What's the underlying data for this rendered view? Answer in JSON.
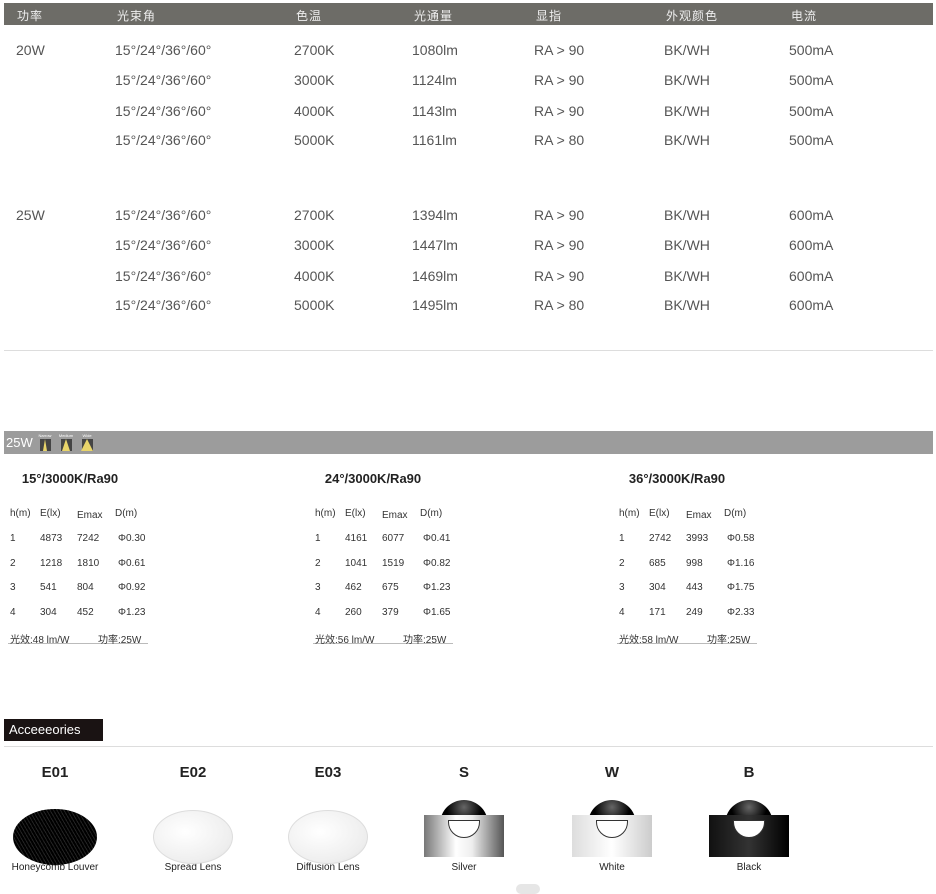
{
  "spec_table": {
    "headers": [
      "功率",
      "光束角",
      "色温",
      "光通量",
      "显指",
      "外观颜色",
      "电流"
    ],
    "groups": [
      {
        "power": "20W",
        "rows": [
          [
            "15°/24°/36°/60°",
            "2700K",
            "1080lm",
            "RA > 90",
            "BK/WH",
            "500mA"
          ],
          [
            "15°/24°/36°/60°",
            "3000K",
            "1124lm",
            "RA > 90",
            "BK/WH",
            "500mA"
          ],
          [
            "15°/24°/36°/60°",
            "4000K",
            "1143lm",
            "RA > 90",
            "BK/WH",
            "500mA"
          ],
          [
            "15°/24°/36°/60°",
            "5000K",
            "1161lm",
            "RA > 80",
            "BK/WH",
            "500mA"
          ]
        ]
      },
      {
        "power": "25W",
        "rows": [
          [
            "15°/24°/36°/60°",
            "2700K",
            "1394lm",
            "RA > 90",
            "BK/WH",
            "600mA"
          ],
          [
            "15°/24°/36°/60°",
            "3000K",
            "1447lm",
            "RA > 90",
            "BK/WH",
            "600mA"
          ],
          [
            "15°/24°/36°/60°",
            "4000K",
            "1469lm",
            "RA > 90",
            "BK/WH",
            "600mA"
          ],
          [
            "15°/24°/36°/60°",
            "5000K",
            "1495lm",
            "RA > 80",
            "BK/WH",
            "600mA"
          ]
        ]
      }
    ]
  },
  "photometric": {
    "power_label": "25W",
    "beam_icons": [
      "Narrow",
      "Medium",
      "Wide"
    ],
    "headers": [
      "h(m)",
      "E(lx)",
      "Emax",
      "D(m)"
    ],
    "tables": [
      {
        "title": "15°/3000K/Ra90",
        "rows": [
          [
            "1",
            "4873",
            "7242",
            "Φ0.30"
          ],
          [
            "2",
            "1218",
            "1810",
            "Φ0.61"
          ],
          [
            "3",
            "541",
            "804",
            "Φ0.92"
          ],
          [
            "4",
            "304",
            "452",
            "Φ1.23"
          ]
        ],
        "efficacy": "光效:48 lm/W",
        "power": "功率:25W"
      },
      {
        "title": "24°/3000K/Ra90",
        "rows": [
          [
            "1",
            "4161",
            "6077",
            "Φ0.41"
          ],
          [
            "2",
            "1041",
            "1519",
            "Φ0.82"
          ],
          [
            "3",
            "462",
            "675",
            "Φ1.23"
          ],
          [
            "4",
            "260",
            "379",
            "Φ1.65"
          ]
        ],
        "efficacy": "光效:56 lm/W",
        "power": "功率:25W"
      },
      {
        "title": "36°/3000K/Ra90",
        "rows": [
          [
            "1",
            "2742",
            "3993",
            "Φ0.58"
          ],
          [
            "2",
            "685",
            "998",
            "Φ1.16"
          ],
          [
            "3",
            "304",
            "443",
            "Φ1.75"
          ],
          [
            "4",
            "171",
            "249",
            "Φ2.33"
          ]
        ],
        "efficacy": "光效:58 lm/W",
        "power": "功率:25W"
      }
    ]
  },
  "accessories": {
    "title": "Acceeeories",
    "items": [
      {
        "code": "E01",
        "name": "Honeycomb Louver",
        "icon": "honeycomb-louver"
      },
      {
        "code": "E02",
        "name": "Spread Lens",
        "icon": "spread-lens"
      },
      {
        "code": "E03",
        "name": "Diffusion Lens",
        "icon": "diffusion-lens"
      },
      {
        "code": "S",
        "name": "Silver",
        "icon": "reflector-silver"
      },
      {
        "code": "W",
        "name": "White",
        "icon": "reflector-white"
      },
      {
        "code": "B",
        "name": "Black",
        "icon": "reflector-black"
      }
    ]
  },
  "colors": {
    "header_bar": "#6d6c67",
    "section_bar": "#9c9c9c",
    "accessory_label": "#1a1313"
  }
}
